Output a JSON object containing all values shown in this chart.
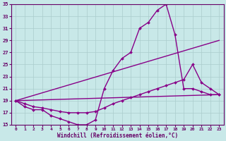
{
  "xlabel": "Windchill (Refroidissement éolien,°C)",
  "xlim": [
    -0.5,
    23.5
  ],
  "ylim": [
    15,
    35
  ],
  "yticks": [
    15,
    17,
    19,
    21,
    23,
    25,
    27,
    29,
    31,
    33,
    35
  ],
  "xticks": [
    0,
    1,
    2,
    3,
    4,
    5,
    6,
    7,
    8,
    9,
    10,
    11,
    12,
    13,
    14,
    15,
    16,
    17,
    18,
    19,
    20,
    21,
    22,
    23
  ],
  "bg_color": "#c8e8e8",
  "series": [
    {
      "x": [
        0,
        1,
        2,
        3,
        4,
        5,
        6,
        7,
        8,
        9,
        10,
        11,
        12,
        13,
        14,
        15,
        16,
        17,
        18,
        19,
        20,
        21,
        22,
        23
      ],
      "y": [
        19,
        18,
        17.5,
        17.5,
        16.5,
        16,
        15.5,
        15,
        15,
        15.8,
        21,
        24,
        26,
        27,
        31,
        32,
        34,
        35,
        30,
        21,
        21,
        20.5,
        20,
        20
      ],
      "color": "#880088",
      "lw": 1.0,
      "marker": "D",
      "ms": 2.0
    },
    {
      "x": [
        0,
        1,
        2,
        3,
        4,
        5,
        6,
        7,
        8,
        9,
        10,
        11,
        12,
        13,
        14,
        15,
        16,
        17,
        18,
        19,
        20,
        21,
        22,
        23
      ],
      "y": [
        19,
        18.5,
        18,
        17.8,
        17.5,
        17.2,
        17,
        17,
        17,
        17.2,
        17.8,
        18.5,
        19,
        19.5,
        20,
        20.5,
        21,
        21.5,
        22,
        22.5,
        25,
        22,
        21,
        20
      ],
      "color": "#880088",
      "lw": 1.0,
      "marker": "D",
      "ms": 2.0
    },
    {
      "x": [
        0,
        23
      ],
      "y": [
        19,
        29
      ],
      "color": "#880088",
      "lw": 1.0,
      "marker": null,
      "ms": 0
    },
    {
      "x": [
        0,
        23
      ],
      "y": [
        19,
        20
      ],
      "color": "#880088",
      "lw": 1.0,
      "marker": null,
      "ms": 0
    }
  ]
}
